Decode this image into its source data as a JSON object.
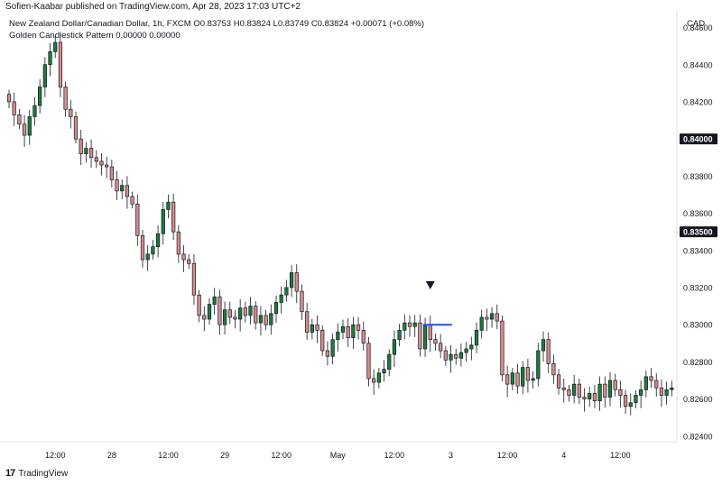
{
  "header": {
    "published": "Sofien-Kaabar published on TradingView.com, Apr 28, 2023 17:03 UTC+2",
    "symbol_line": "New Zealand Dollar/Canadian Dollar, 1h, FXCM  O0.83753  H0.83824  L0.83749  C0.83824  +0.00071 (+0.08%)",
    "indicator_line": "Golden Candlestick Pattern  0.00000  0.00000",
    "currency": "CAD"
  },
  "footer": {
    "logo": "17",
    "brand": "TradingView"
  },
  "colors": {
    "up": "#26a69a",
    "up_fill": "#1b7d3a",
    "down": "#ef9a9a",
    "down_fill": "#d98c8c",
    "wick": "#131722",
    "signal": "#1e53e5",
    "marker": "#131722"
  },
  "chart_data": {
    "type": "candlestick",
    "title": "New Zealand Dollar/Canadian Dollar, 1h, FXCM",
    "ylim": [
      0.8237,
      0.8469
    ],
    "y_ticks": [
      "0.84600",
      "0.84400",
      "0.84200",
      "0.84000",
      "0.83800",
      "0.83600",
      "0.83500",
      "0.83400",
      "0.83200",
      "0.83000",
      "0.82800",
      "0.82600",
      "0.82400"
    ],
    "y_tick_values": [
      0.846,
      0.844,
      0.842,
      0.84,
      0.838,
      0.836,
      0.835,
      0.834,
      0.832,
      0.83,
      0.828,
      0.826,
      0.824
    ],
    "highlighted_ticks": [
      "0.84000",
      "0.83500"
    ],
    "x_ticks": [
      "12:00",
      "28",
      "12:00",
      "29",
      "12:00",
      "May",
      "12:00",
      "3",
      "12:00",
      "4",
      "12:00"
    ],
    "x_tick_index": [
      9,
      20,
      31,
      42,
      53,
      64,
      75,
      86,
      97,
      108,
      119
    ],
    "closes": [
      0.842,
      0.8413,
      0.8408,
      0.8402,
      0.8412,
      0.8418,
      0.8428,
      0.844,
      0.8447,
      0.8452,
      0.8428,
      0.8416,
      0.8412,
      0.84,
      0.8392,
      0.8395,
      0.839,
      0.8388,
      0.8386,
      0.8385,
      0.8378,
      0.8372,
      0.8375,
      0.8369,
      0.8365,
      0.8348,
      0.8335,
      0.8338,
      0.8342,
      0.8349,
      0.8362,
      0.8366,
      0.835,
      0.8338,
      0.8335,
      0.8333,
      0.8316,
      0.8305,
      0.8303,
      0.8311,
      0.8315,
      0.83,
      0.8308,
      0.8304,
      0.8303,
      0.8309,
      0.8305,
      0.831,
      0.8301,
      0.8305,
      0.83,
      0.8306,
      0.8312,
      0.8316,
      0.832,
      0.8328,
      0.8318,
      0.8307,
      0.8296,
      0.83,
      0.8297,
      0.8286,
      0.8283,
      0.8292,
      0.8296,
      0.8299,
      0.8293,
      0.83,
      0.8297,
      0.829,
      0.8271,
      0.8269,
      0.8274,
      0.8276,
      0.8284,
      0.8292,
      0.8297,
      0.8301,
      0.8299,
      0.8301,
      0.8287,
      0.83,
      0.8292,
      0.829,
      0.8286,
      0.8281,
      0.8284,
      0.8282,
      0.8285,
      0.8287,
      0.8289,
      0.8297,
      0.8304,
      0.8303,
      0.8306,
      0.8302,
      0.8273,
      0.8268,
      0.8274,
      0.8267,
      0.8277,
      0.827,
      0.8271,
      0.8286,
      0.8292,
      0.8279,
      0.8273,
      0.8266,
      0.8265,
      0.8262,
      0.8268,
      0.8261,
      0.826,
      0.8263,
      0.8259,
      0.8268,
      0.8261,
      0.827,
      0.8265,
      0.8262,
      0.8256,
      0.8258,
      0.8262,
      0.8265,
      0.8272,
      0.827,
      0.8266,
      0.8262,
      0.8265,
      0.8266
    ],
    "signal_index": 82,
    "signal_level": 0.83
  }
}
